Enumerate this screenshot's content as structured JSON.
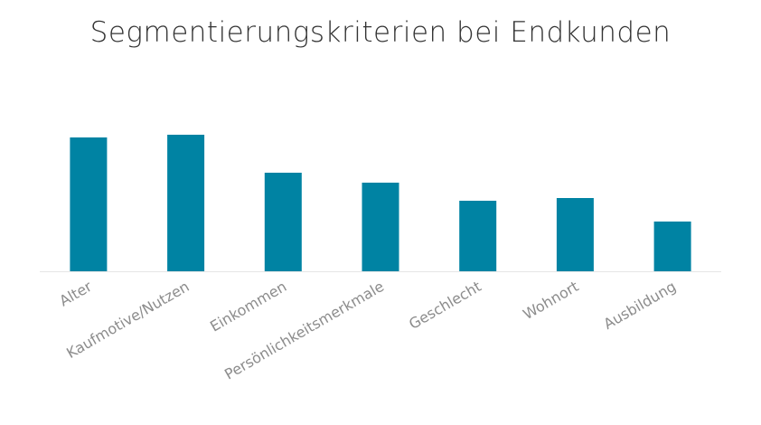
{
  "chart_data": {
    "type": "bar",
    "title": "Segmentierungskriterien bei Endkunden",
    "categories": [
      "Alter",
      "Kaufmotive/Nutzen",
      "Einkommen",
      "Persönlichkeitsmerkmale",
      "Geschlecht",
      "Wohnort",
      "Ausbildung"
    ],
    "values": [
      148,
      151,
      109,
      98,
      78,
      81,
      55
    ],
    "ylim": [
      0,
      160
    ],
    "xlabel": "",
    "ylabel": "",
    "grid": false,
    "legend": "none",
    "bar_color": "#0083a3",
    "axis_color": "#e6e6e6"
  }
}
